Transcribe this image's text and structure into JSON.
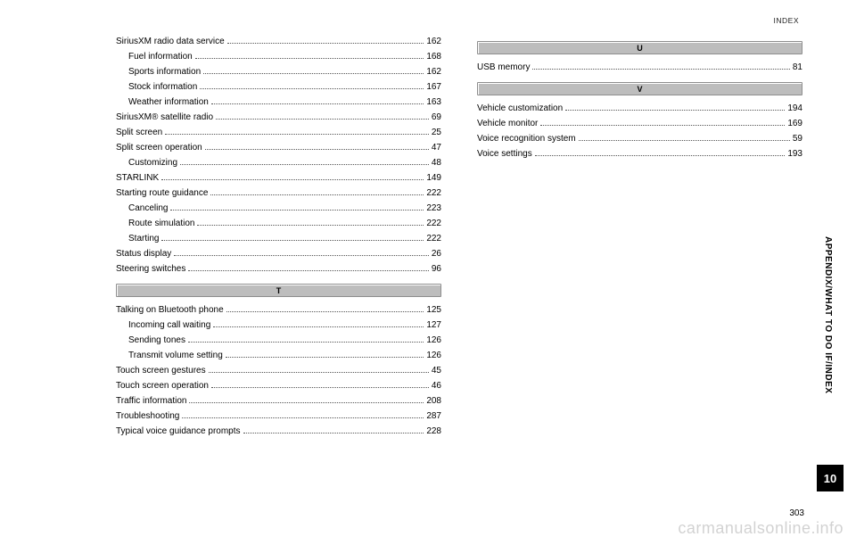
{
  "header": "INDEX",
  "sideLabel": "APPENDIX/WHAT TO DO IF/INDEX",
  "tabNumber": "10",
  "pageNumber": "303",
  "watermark": "carmanualsonline.info",
  "leftCol": {
    "groupS": [
      {
        "label": "SiriusXM radio data service",
        "page": "162",
        "indent": 0
      },
      {
        "label": "Fuel information",
        "page": "168",
        "indent": 1
      },
      {
        "label": "Sports information",
        "page": "162",
        "indent": 1
      },
      {
        "label": "Stock information",
        "page": "167",
        "indent": 1
      },
      {
        "label": "Weather information",
        "page": "163",
        "indent": 1
      },
      {
        "label": "SiriusXM® satellite radio",
        "page": "69",
        "indent": 0
      },
      {
        "label": "Split screen",
        "page": "25",
        "indent": 0
      },
      {
        "label": "Split screen operation",
        "page": "47",
        "indent": 0
      },
      {
        "label": "Customizing",
        "page": "48",
        "indent": 1
      },
      {
        "label": "STARLINK",
        "page": "149",
        "indent": 0
      },
      {
        "label": "Starting route guidance",
        "page": "222",
        "indent": 0
      },
      {
        "label": "Canceling",
        "page": "223",
        "indent": 1
      },
      {
        "label": "Route simulation",
        "page": "222",
        "indent": 1
      },
      {
        "label": "Starting",
        "page": "222",
        "indent": 1
      },
      {
        "label": "Status display",
        "page": "26",
        "indent": 0
      },
      {
        "label": "Steering switches",
        "page": "96",
        "indent": 0
      }
    ],
    "barT": "T",
    "groupT": [
      {
        "label": "Talking on Bluetooth phone",
        "page": "125",
        "indent": 0
      },
      {
        "label": "Incoming call waiting",
        "page": "127",
        "indent": 1
      },
      {
        "label": "Sending tones",
        "page": "126",
        "indent": 1
      },
      {
        "label": "Transmit volume setting",
        "page": "126",
        "indent": 1
      },
      {
        "label": "Touch screen gestures",
        "page": "45",
        "indent": 0
      },
      {
        "label": "Touch screen operation",
        "page": "46",
        "indent": 0
      },
      {
        "label": "Traffic information",
        "page": "208",
        "indent": 0
      },
      {
        "label": "Troubleshooting",
        "page": "287",
        "indent": 0
      },
      {
        "label": "Typical voice guidance prompts",
        "page": "228",
        "indent": 0
      }
    ]
  },
  "rightCol": {
    "barU": "U",
    "groupU": [
      {
        "label": "USB memory",
        "page": "81",
        "indent": 0
      }
    ],
    "barV": "V",
    "groupV": [
      {
        "label": "Vehicle customization",
        "page": "194",
        "indent": 0
      },
      {
        "label": "Vehicle monitor",
        "page": "169",
        "indent": 0
      },
      {
        "label": "Voice recognition system",
        "page": "59",
        "indent": 0
      },
      {
        "label": "Voice settings",
        "page": "193",
        "indent": 0
      }
    ]
  }
}
